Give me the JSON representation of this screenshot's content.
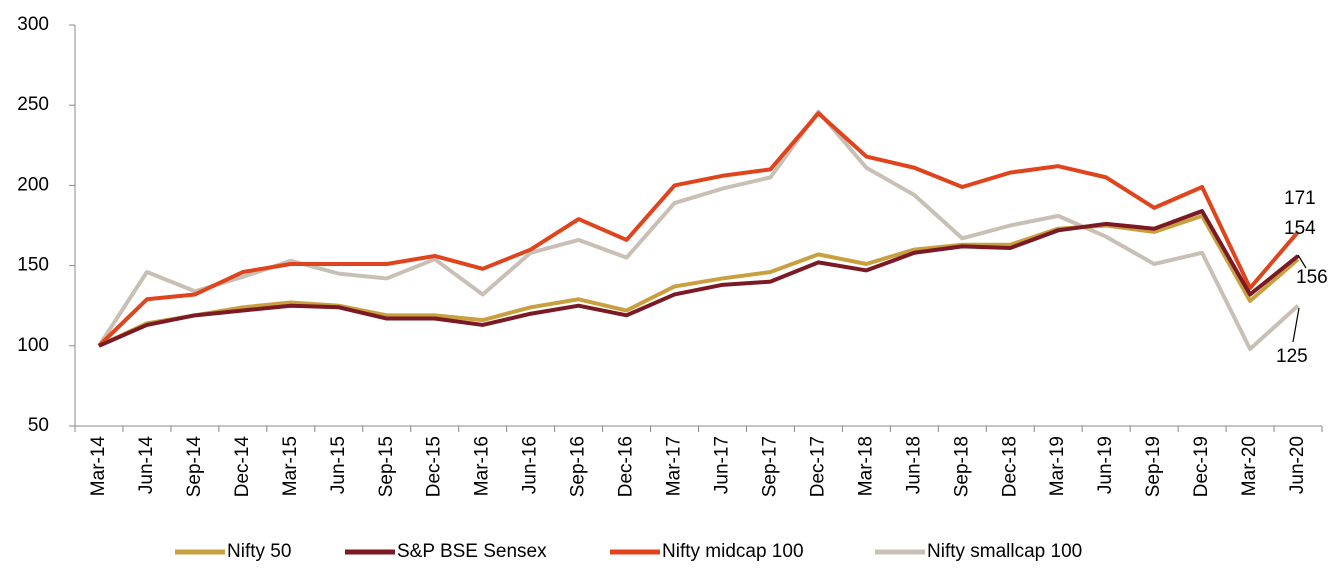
{
  "chart_data": {
    "type": "line",
    "categories": [
      "Mar-14",
      "Jun-14",
      "Sep-14",
      "Dec-14",
      "Mar-15",
      "Jun-15",
      "Sep-15",
      "Dec-15",
      "Mar-16",
      "Jun-16",
      "Sep-16",
      "Dec-16",
      "Mar-17",
      "Jun-17",
      "Sep-17",
      "Dec-17",
      "Mar-18",
      "Jun-18",
      "Sep-18",
      "Dec-18",
      "Mar-19",
      "Jun-19",
      "Sep-19",
      "Dec-19",
      "Mar-20",
      "Jun-20"
    ],
    "series": [
      {
        "name": "Nifty 50",
        "color": "#c9a040",
        "values": [
          100,
          114,
          119,
          124,
          127,
          125,
          119,
          119,
          116,
          124,
          129,
          122,
          137,
          142,
          146,
          157,
          151,
          160,
          163,
          163,
          173,
          175,
          171,
          181,
          128,
          154
        ]
      },
      {
        "name": "S&P BSE Sensex",
        "color": "#7b1a24",
        "values": [
          100,
          113,
          119,
          122,
          125,
          124,
          117,
          117,
          113,
          120,
          125,
          119,
          132,
          138,
          140,
          152,
          147,
          158,
          162,
          161,
          172,
          176,
          173,
          184,
          132,
          156
        ]
      },
      {
        "name": "Nifty midcap 100",
        "color": "#e0441c",
        "values": [
          100,
          129,
          132,
          146,
          151,
          151,
          151,
          156,
          148,
          160,
          179,
          166,
          200,
          206,
          210,
          245,
          218,
          211,
          199,
          208,
          212,
          205,
          186,
          199,
          136,
          171
        ]
      },
      {
        "name": "Nifty smallcap 100",
        "color": "#c8c0b5",
        "values": [
          100,
          146,
          134,
          143,
          153,
          145,
          142,
          154,
          132,
          158,
          166,
          155,
          189,
          198,
          205,
          246,
          211,
          194,
          167,
          175,
          181,
          168,
          151,
          158,
          98,
          125
        ]
      }
    ],
    "ylim": [
      50,
      300
    ],
    "yticks": [
      50,
      100,
      150,
      200,
      250,
      300
    ],
    "legend": "bottom"
  }
}
